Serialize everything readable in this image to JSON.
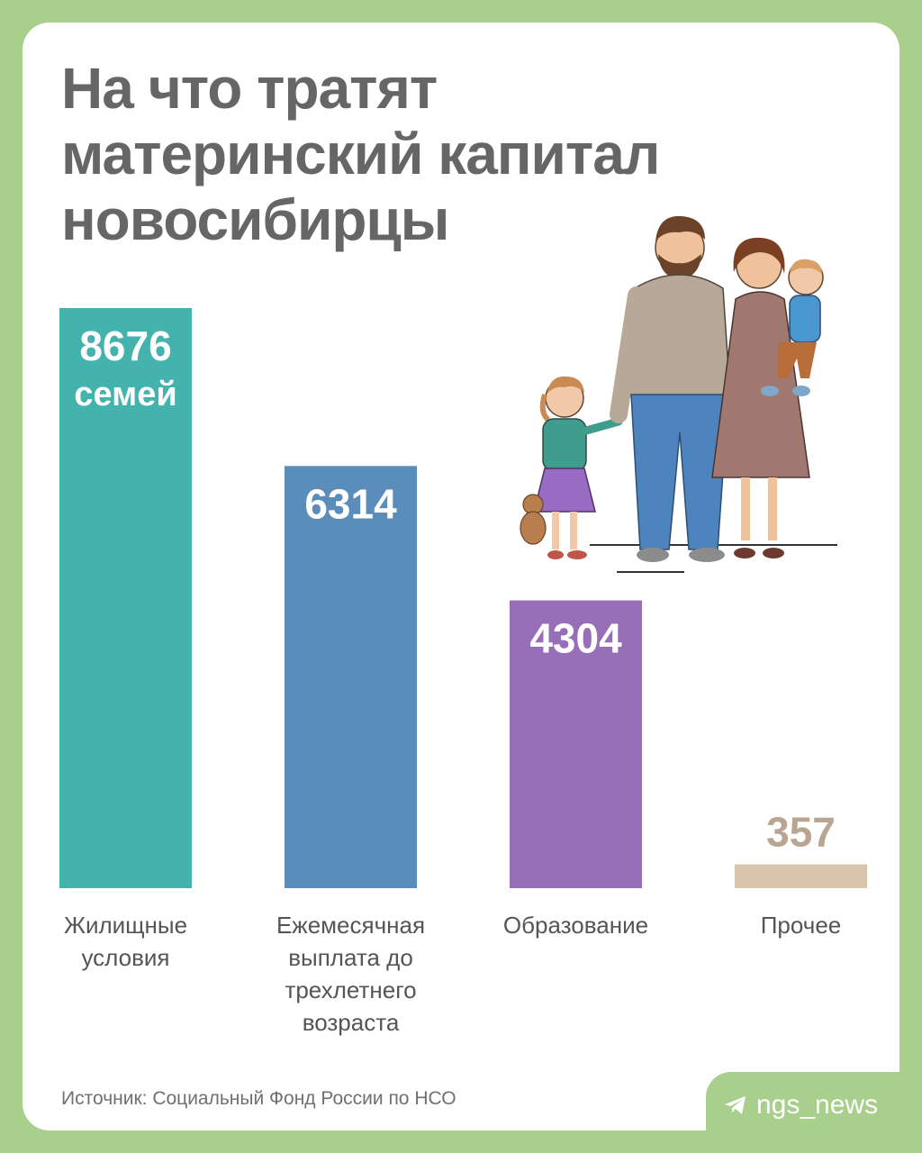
{
  "title_lines": [
    "На что тратят",
    "материнский капитал",
    "новосибирцы"
  ],
  "source": "Источник: Социальный Фонд России по НСО",
  "brand": "ngs_news",
  "brand_icon": "telegram-icon",
  "chart_data": {
    "type": "bar",
    "categories": [
      [
        "Жилищные",
        "условия"
      ],
      [
        "Ежемесячная",
        "выплата до",
        "трехлетнего",
        "возраста"
      ],
      [
        "Образование"
      ],
      [
        "Прочее"
      ]
    ],
    "values": [
      8676,
      6314,
      4304,
      357
    ],
    "value_labels": [
      "8676",
      "6314",
      "4304",
      "357"
    ],
    "unit_label": "семей",
    "colors": [
      "#45b3ad",
      "#5a8db9",
      "#976fb8",
      "#d9c3ac"
    ],
    "value_label_colors": [
      "#ffffff",
      "#ffffff",
      "#ffffff",
      "#b9a592"
    ],
    "ylim": [
      0,
      8676
    ],
    "grid": false,
    "legend": "none"
  }
}
